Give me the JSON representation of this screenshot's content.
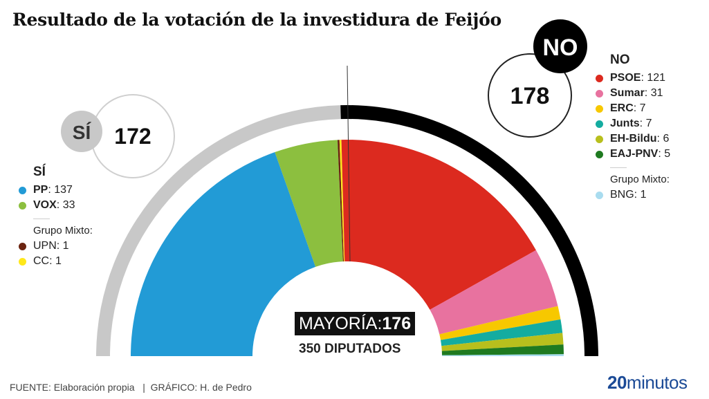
{
  "chart_data": {
    "type": "pie",
    "subtype": "half-donut parliament",
    "title": "Resultado de la votación de la investidura de Feijóo",
    "total_label": "350 DIPUTADOS",
    "total": 350,
    "majority_label": "MAYORÍA:",
    "majority": 176,
    "blocks": [
      {
        "label": "SÍ",
        "value": 172,
        "color": "#c8c8c8"
      },
      {
        "label": "NO",
        "value": 178,
        "color": "#000000"
      }
    ],
    "slices": [
      {
        "name": "PP",
        "value": 137,
        "color": "#229bd6",
        "block": "SÍ",
        "mixto": false
      },
      {
        "name": "VOX",
        "value": 33,
        "color": "#8cbf3f",
        "block": "SÍ",
        "mixto": false
      },
      {
        "name": "UPN",
        "value": 1,
        "color": "#6b2410",
        "block": "SÍ",
        "mixto": true
      },
      {
        "name": "CC",
        "value": 1,
        "color": "#ffe81a",
        "block": "SÍ",
        "mixto": true
      },
      {
        "name": "PSOE",
        "value": 121,
        "color": "#dc2a1f",
        "block": "NO",
        "mixto": false
      },
      {
        "name": "Sumar",
        "value": 31,
        "color": "#e8729f",
        "block": "NO",
        "mixto": false
      },
      {
        "name": "ERC",
        "value": 7,
        "color": "#f7c800",
        "block": "NO",
        "mixto": false
      },
      {
        "name": "Junts",
        "value": 7,
        "color": "#14aca0",
        "block": "NO",
        "mixto": false
      },
      {
        "name": "EH-Bildu",
        "value": 6,
        "color": "#b8bf1d",
        "block": "NO",
        "mixto": false
      },
      {
        "name": "EAJ-PNV",
        "value": 5,
        "color": "#1f7a20",
        "block": "NO",
        "mixto": false
      },
      {
        "name": "BNG",
        "value": 1,
        "color": "#a9dcef",
        "block": "NO",
        "mixto": true
      }
    ]
  },
  "legend": {
    "si_head": "SÍ",
    "no_head": "NO",
    "grupo_mixto": "Grupo Mixto:"
  },
  "footer": {
    "source": "FUENTE: Elaboración propia   |  GRÁFICO: H. de Pedro"
  },
  "logo": {
    "prefix": "20",
    "suffix": "minutos",
    "color": "#1b4a96"
  }
}
